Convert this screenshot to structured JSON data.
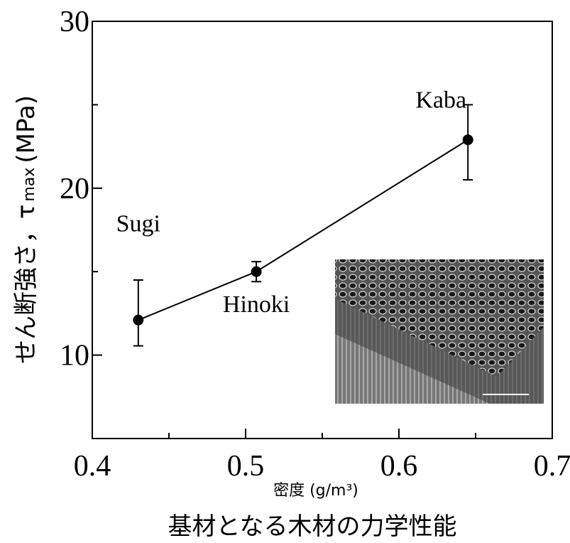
{
  "chart_data": {
    "type": "errorbar-line",
    "x": [
      0.43,
      0.507,
      0.645
    ],
    "values": [
      12.1,
      15.0,
      22.9
    ],
    "yerr_minus": [
      1.55,
      0.6,
      2.4
    ],
    "yerr_plus": [
      2.4,
      0.6,
      2.1
    ],
    "point_labels": [
      "Sugi",
      "Hinoki",
      "Kaba"
    ],
    "color": "#000000",
    "xlim": [
      0.4,
      0.7
    ],
    "xticks": [
      0.4,
      0.5,
      0.6,
      0.7
    ],
    "xminor": [
      0.45,
      0.55,
      0.65
    ],
    "ylim": [
      5,
      30
    ],
    "yticks": [
      10,
      20,
      30
    ],
    "yminor": [
      15,
      25
    ],
    "ylabel": "せん断強さ，τ",
    "ylabel_sub": "max",
    "ylabel_unit": "(MPa)",
    "xlabel": "密度 (g/m³)",
    "caption": "基材となる木材の力学性能"
  }
}
